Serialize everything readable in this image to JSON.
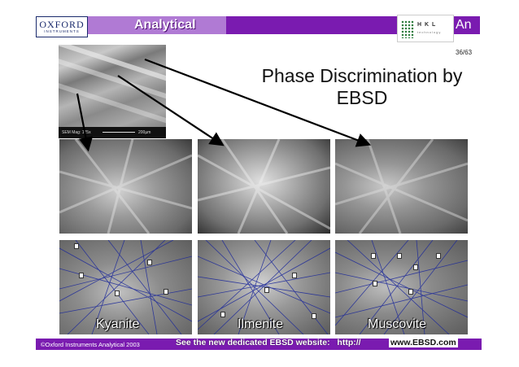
{
  "header": {
    "logo_line1": "OXFORD",
    "logo_line2": "INSTRUMENTS",
    "section_title": "Analytical",
    "right_logo_text": "H K L",
    "right_logo_sub": "technology",
    "cut_off_title": "An",
    "page_number": "36/63"
  },
  "main": {
    "heading_line1": "Phase Discrimination by",
    "heading_line2": "EBSD",
    "sem_image": {
      "caption_left": "SEM Mag: 125x",
      "caption_right": "200µm"
    },
    "phases": [
      {
        "name": "Kyanite"
      },
      {
        "name": "Ilmenite"
      },
      {
        "name": "Muscovite"
      }
    ]
  },
  "footer": {
    "copyright": "©Oxford Instruments Analytical 2003",
    "promo": "See the new dedicated EBSD website:",
    "url_prefix": "http://",
    "url_main": "www.EBSD.com"
  },
  "colors": {
    "brand_purple": "#7a1bb0",
    "brand_purple_light": "#b07ad4",
    "index_band_blue": "#1e2a9a"
  }
}
